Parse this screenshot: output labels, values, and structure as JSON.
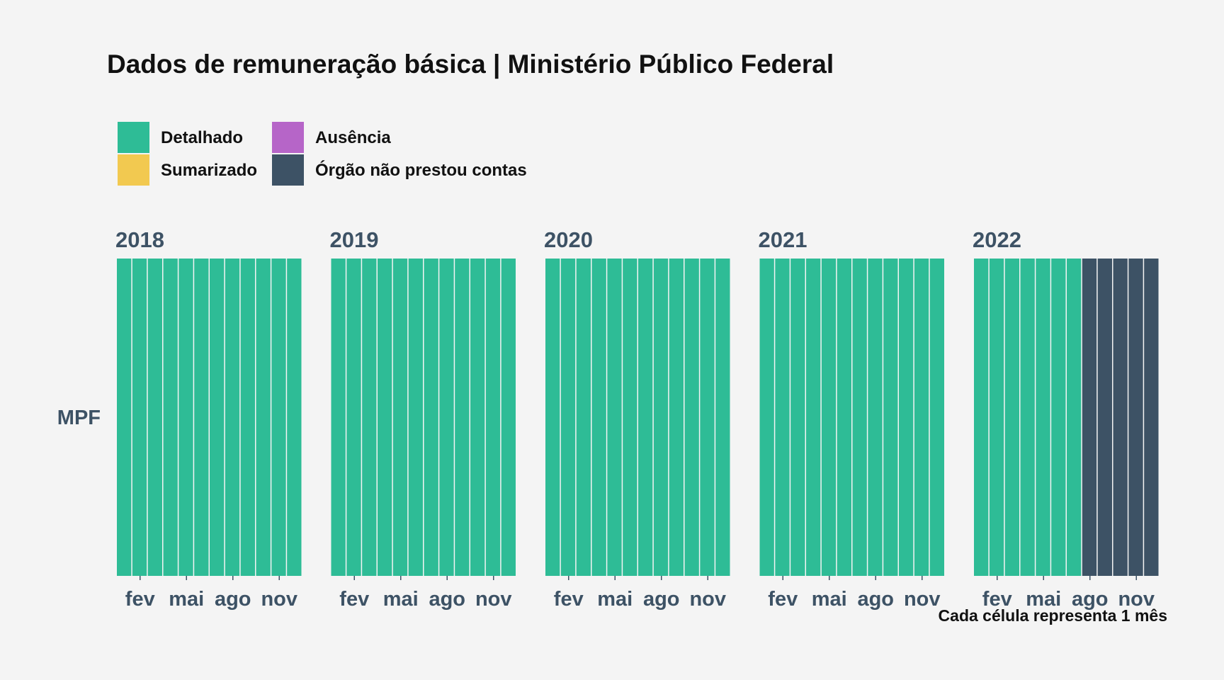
{
  "chart_data": {
    "type": "heatmap",
    "title": "Dados de remuneração básica | Ministério Público Federal",
    "caption": "Cada célula representa 1 mês",
    "row_label": "MPF",
    "legend": [
      {
        "label": "Detalhado",
        "color": "#2ebc96"
      },
      {
        "label": "Ausência",
        "color": "#b665c8"
      },
      {
        "label": "Sumarizado",
        "color": "#f2c950"
      },
      {
        "label": "Órgão não prestou contas",
        "color": "#3d5265"
      }
    ],
    "month_ticks": [
      {
        "month": 2,
        "label": "fev"
      },
      {
        "month": 5,
        "label": "mai"
      },
      {
        "month": 8,
        "label": "ago"
      },
      {
        "month": 11,
        "label": "nov"
      }
    ],
    "years": [
      {
        "year": "2018",
        "months": [
          "Detalhado",
          "Detalhado",
          "Detalhado",
          "Detalhado",
          "Detalhado",
          "Detalhado",
          "Detalhado",
          "Detalhado",
          "Detalhado",
          "Detalhado",
          "Detalhado",
          "Detalhado"
        ]
      },
      {
        "year": "2019",
        "months": [
          "Detalhado",
          "Detalhado",
          "Detalhado",
          "Detalhado",
          "Detalhado",
          "Detalhado",
          "Detalhado",
          "Detalhado",
          "Detalhado",
          "Detalhado",
          "Detalhado",
          "Detalhado"
        ]
      },
      {
        "year": "2020",
        "months": [
          "Detalhado",
          "Detalhado",
          "Detalhado",
          "Detalhado",
          "Detalhado",
          "Detalhado",
          "Detalhado",
          "Detalhado",
          "Detalhado",
          "Detalhado",
          "Detalhado",
          "Detalhado"
        ]
      },
      {
        "year": "2021",
        "months": [
          "Detalhado",
          "Detalhado",
          "Detalhado",
          "Detalhado",
          "Detalhado",
          "Detalhado",
          "Detalhado",
          "Detalhado",
          "Detalhado",
          "Detalhado",
          "Detalhado",
          "Detalhado"
        ]
      },
      {
        "year": "2022",
        "months": [
          "Detalhado",
          "Detalhado",
          "Detalhado",
          "Detalhado",
          "Detalhado",
          "Detalhado",
          "Detalhado",
          "Órgão não prestou contas",
          "Órgão não prestou contas",
          "Órgão não prestou contas",
          "Órgão não prestou contas",
          "Órgão não prestou contas"
        ]
      }
    ]
  }
}
